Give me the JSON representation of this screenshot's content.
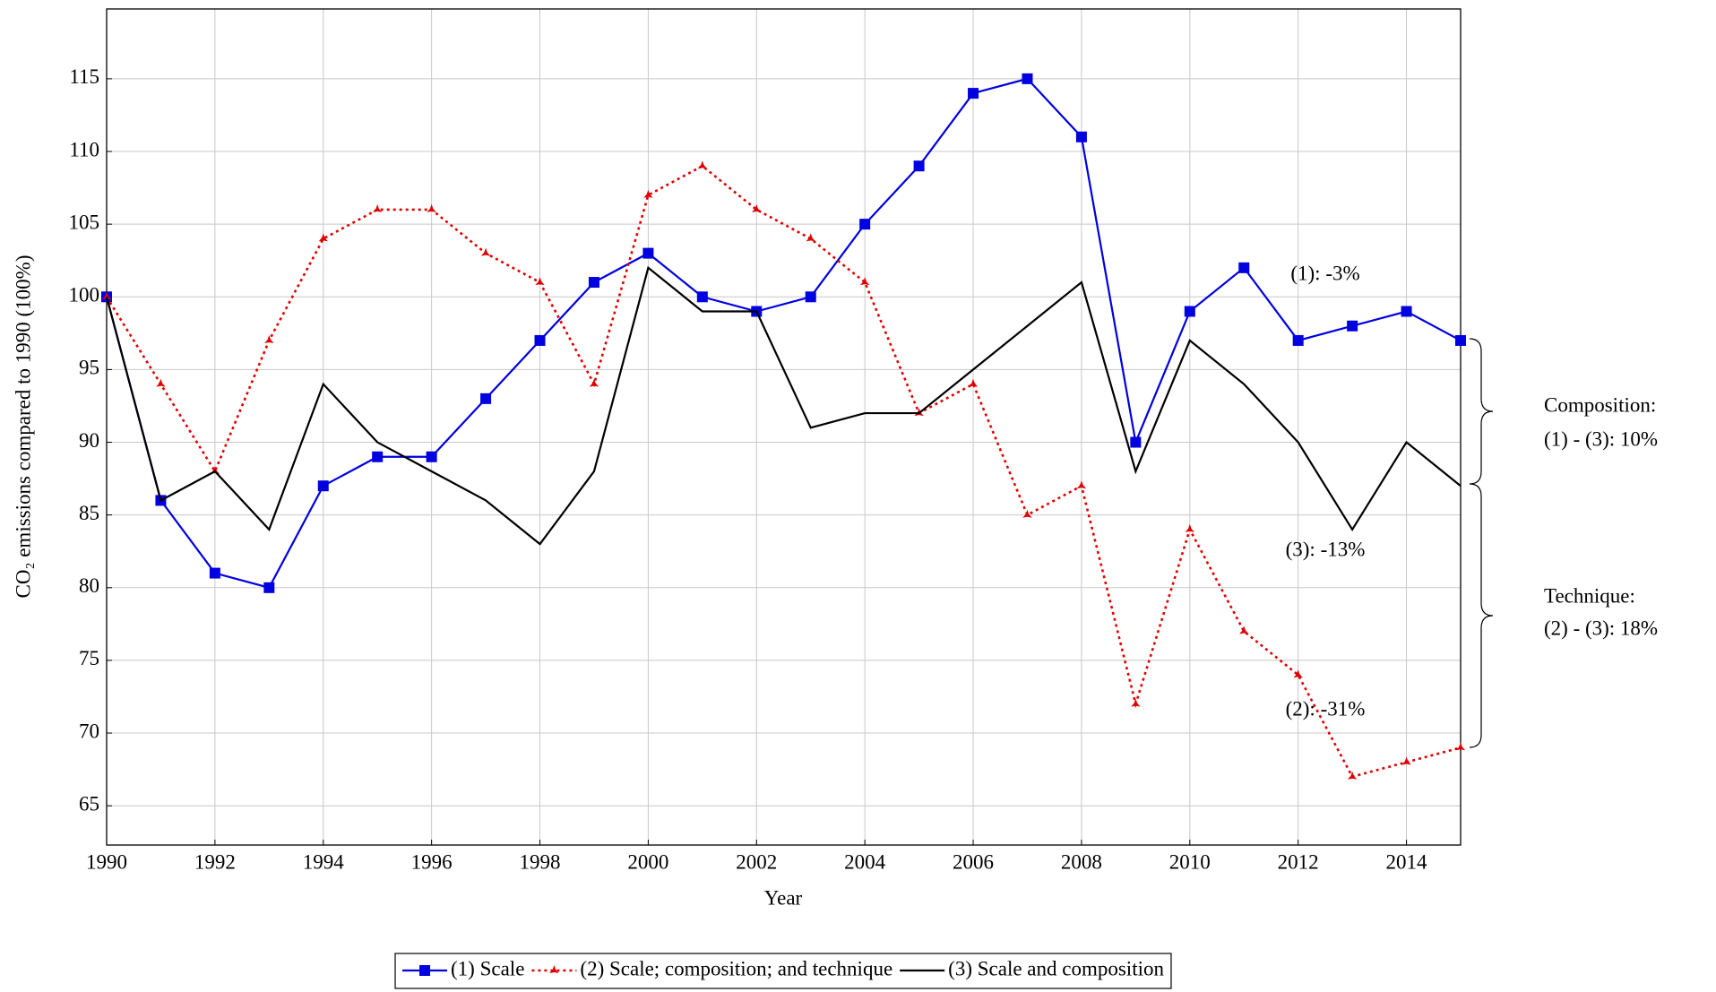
{
  "chart_data": {
    "type": "line",
    "x_label": "Year",
    "y_label": "CO₂ emissions compared to 1990 (100%)",
    "x": [
      1990,
      1991,
      1992,
      1993,
      1994,
      1995,
      1996,
      1997,
      1998,
      1999,
      2000,
      2001,
      2002,
      2003,
      2004,
      2005,
      2006,
      2007,
      2008,
      2009,
      2010,
      2011,
      2012,
      2013,
      2014,
      2015
    ],
    "series": [
      {
        "name": "(1) Scale",
        "color": "#0000e0",
        "marker": "square",
        "dash": false,
        "values": [
          100,
          86,
          81,
          80,
          87,
          89,
          89,
          93,
          97,
          101,
          103,
          100,
          99,
          100,
          105,
          109,
          114,
          115,
          111,
          90,
          99,
          102,
          97,
          98,
          99,
          97
        ]
      },
      {
        "name": "(2) Scale; composition; and technique",
        "color": "#e00000",
        "marker": "star",
        "dash": true,
        "values": [
          100,
          94,
          88,
          97,
          104,
          106,
          106,
          103,
          101,
          94,
          107,
          109,
          106,
          104,
          101,
          92,
          94,
          85,
          87,
          72,
          84,
          77,
          74,
          67,
          68,
          69
        ]
      },
      {
        "name": "(3) Scale and composition",
        "color": "#000000",
        "marker": "none",
        "dash": false,
        "values": [
          100,
          86,
          88,
          84,
          94,
          90,
          88,
          86,
          83,
          88,
          102,
          99,
          99,
          91,
          92,
          92,
          95,
          98,
          101,
          88,
          97,
          94,
          90,
          84,
          90,
          87
        ]
      }
    ],
    "xlim": [
      1990,
      2015
    ],
    "ylim": [
      62.3,
      119.8
    ],
    "xticks": [
      1990,
      1992,
      1994,
      1996,
      1998,
      2000,
      2002,
      2004,
      2006,
      2008,
      2010,
      2012,
      2014
    ],
    "yticks": [
      65,
      70,
      75,
      80,
      85,
      90,
      95,
      100,
      105,
      110,
      115
    ],
    "grid": true,
    "legend": "bottom",
    "annotations": [
      "(1): -3%",
      "(3): -13%",
      "(2): -31%",
      "Composition:",
      "(1) - (3): 10%",
      "Technique:",
      "(2) - (3): 18%"
    ]
  }
}
